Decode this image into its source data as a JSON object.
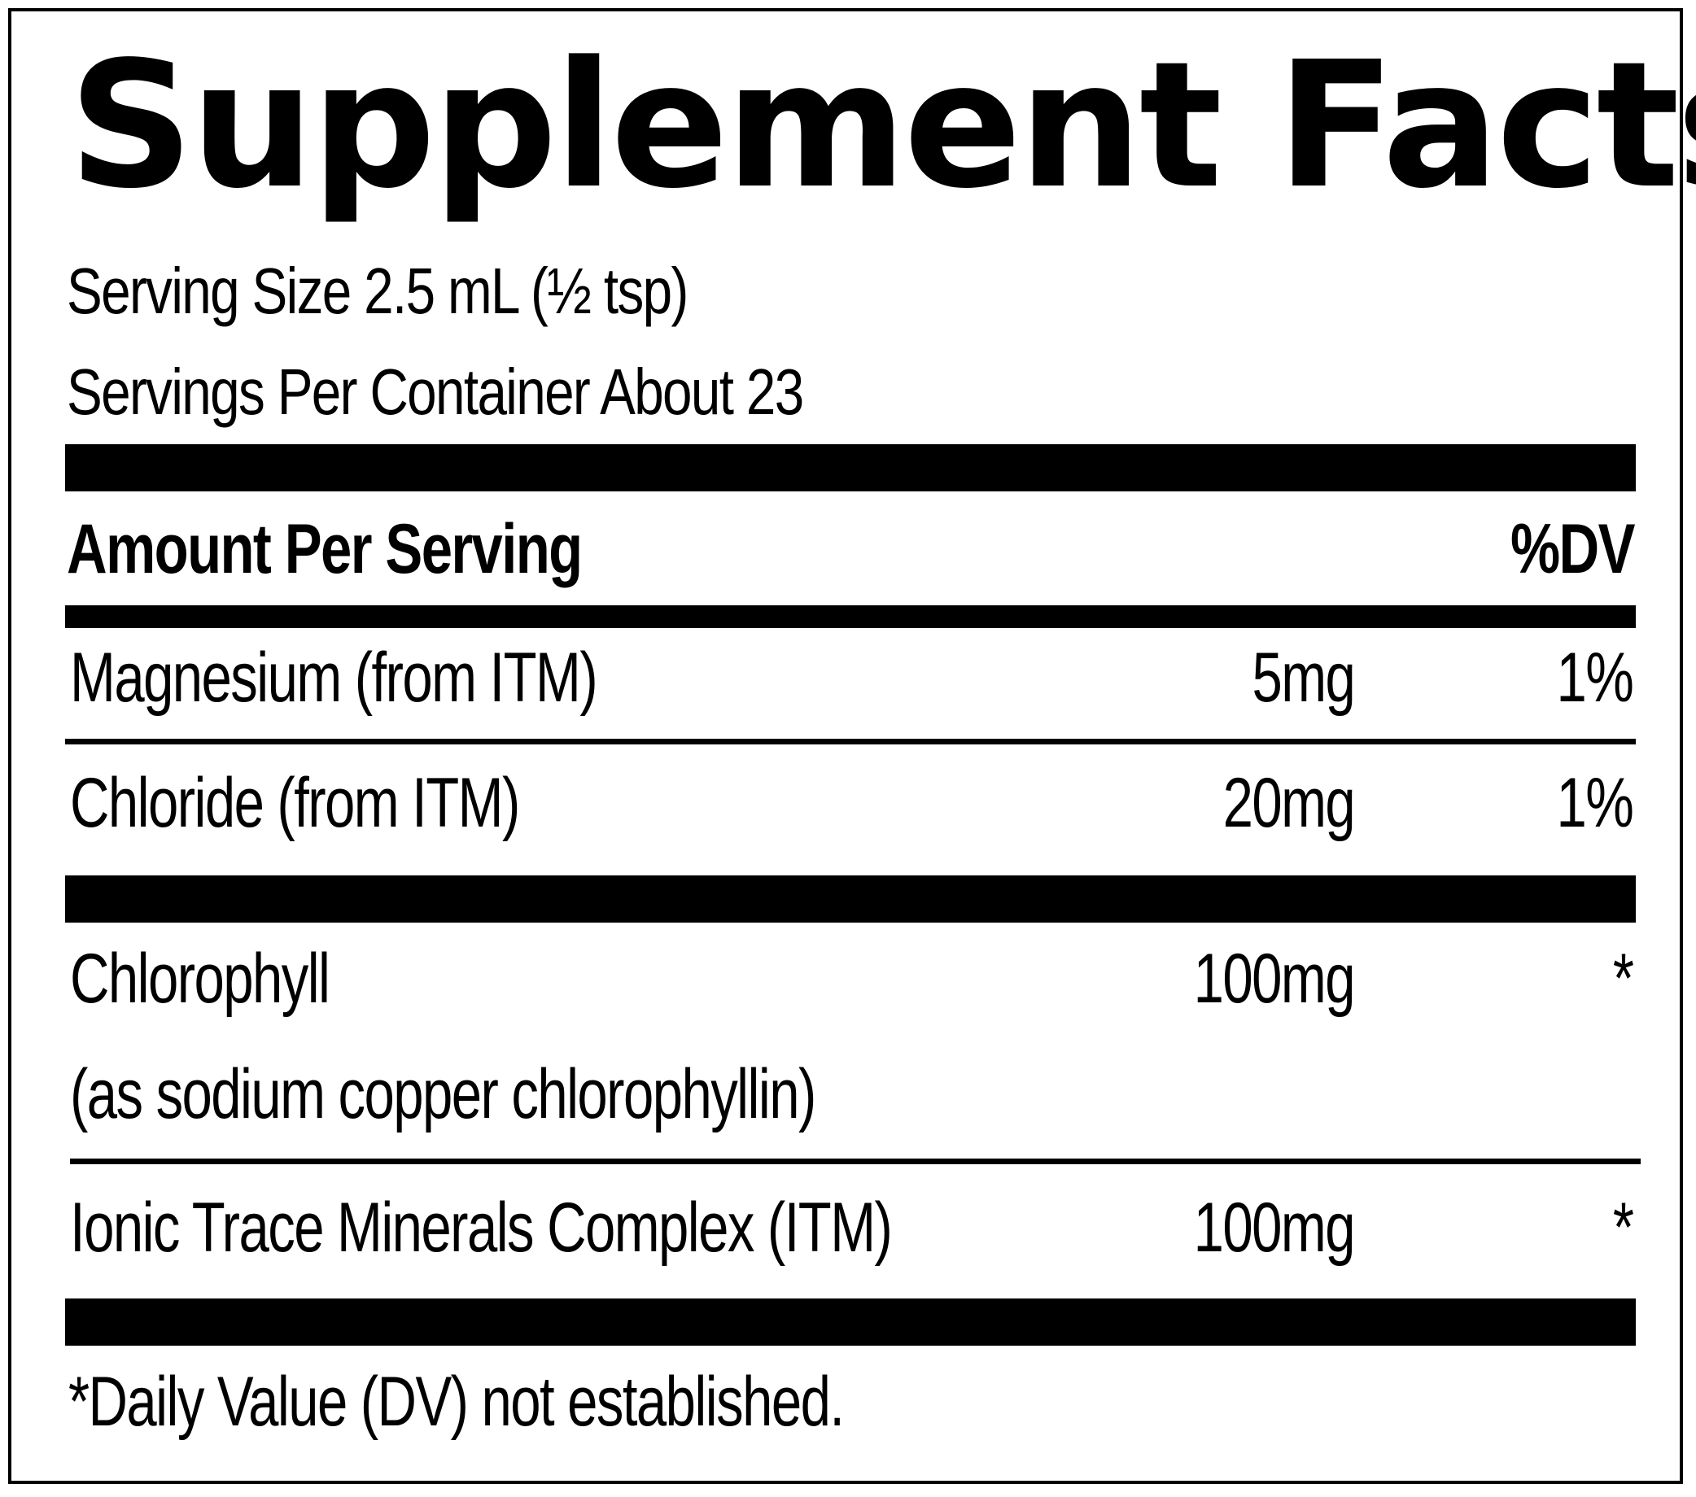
{
  "title": "Supplement Facts",
  "serving_size": "Serving Size 2.5 mL (½ tsp)",
  "servings_per_container": "Servings Per Container About 23",
  "header": {
    "amount_per_serving": "Amount Per Serving",
    "dv": "%DV"
  },
  "rows": [
    {
      "name": "Magnesium (from ITM)",
      "amount": "5mg",
      "dv": "1%"
    },
    {
      "name": "Chloride (from ITM)",
      "amount": "20mg",
      "dv": "1%"
    },
    {
      "name": "Chlorophyll",
      "name_line2": "(as sodium copper chlorophyllin)",
      "amount": "100mg",
      "dv": "*"
    },
    {
      "name": "Ionic Trace Minerals Complex (ITM)",
      "amount": "100mg",
      "dv": "*"
    }
  ],
  "footnote": "*Daily Value (DV) not established."
}
